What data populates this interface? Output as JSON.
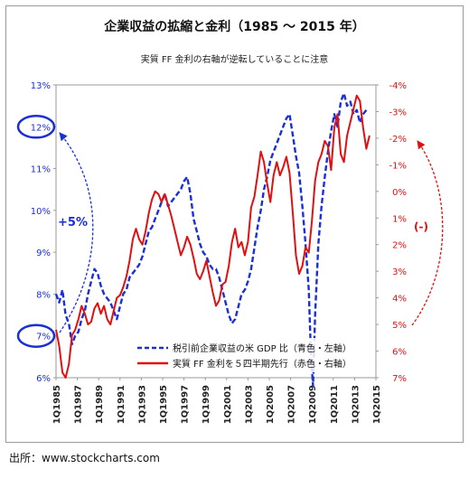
{
  "title": "企業収益の拡縮と金利（1985 ～ 2015 年）",
  "subtitle": "実質 FF 金利の右軸が逆転していることに注意",
  "source": "出所：www.stockcharts.com",
  "colors": {
    "left_series": "#1a2fd6",
    "right_series": "#e01010",
    "left_axis": "#1a2fd6",
    "right_axis": "#e01010"
  },
  "annotations": {
    "left_change": "+5%",
    "right_change": "(-)"
  },
  "chart_data": {
    "type": "line",
    "title": "企業収益の拡縮と金利（1985 ～ 2015 年）",
    "subtitle": "実質 FF 金利の右軸が逆転していることに注意",
    "x_tick_labels": [
      "1Q1985",
      "1Q1987",
      "1Q1989",
      "1Q1991",
      "1Q1993",
      "1Q1995",
      "1Q1997",
      "1Q1999",
      "1Q2001",
      "1Q2003",
      "1Q2005",
      "1Q2007",
      "1Q2009",
      "1Q2011",
      "1Q2013",
      "1Q2015"
    ],
    "x_range": [
      1985,
      2015
    ],
    "left_axis": {
      "min": 6,
      "max": 13,
      "tick_labels": [
        "6%",
        "7%",
        "8%",
        "9%",
        "10%",
        "11%",
        "12%",
        "13%"
      ],
      "circled": [
        "7%",
        "12%"
      ]
    },
    "right_axis": {
      "min": -4,
      "max": 7,
      "reversed": true,
      "tick_labels": [
        "-4%",
        "-3%",
        "-2%",
        "-1%",
        "0%",
        "1%",
        "2%",
        "3%",
        "4%",
        "5%",
        "6%",
        "7%"
      ]
    },
    "legend_placement": "bottom-right",
    "series": [
      {
        "name": "税引前企業収益の米 GDP 比（青色・左軸）",
        "axis": "left",
        "style": "dashed",
        "x": [
          1985.0,
          1985.3,
          1985.6,
          1985.9,
          1986.2,
          1986.5,
          1986.8,
          1987.1,
          1987.4,
          1987.7,
          1988.0,
          1988.3,
          1988.6,
          1988.9,
          1989.2,
          1989.5,
          1989.8,
          1990.1,
          1990.4,
          1990.7,
          1991.0,
          1991.3,
          1991.6,
          1991.9,
          1992.2,
          1992.5,
          1992.8,
          1993.1,
          1993.4,
          1993.7,
          1994.0,
          1994.3,
          1994.6,
          1994.9,
          1995.2,
          1995.5,
          1995.8,
          1996.1,
          1996.4,
          1996.7,
          1997.0,
          1997.3,
          1997.6,
          1997.9,
          1998.2,
          1998.5,
          1998.8,
          1999.1,
          1999.4,
          1999.7,
          2000.0,
          2000.3,
          2000.6,
          2000.9,
          2001.2,
          2001.5,
          2001.8,
          2002.1,
          2002.4,
          2002.7,
          2003.0,
          2003.3,
          2003.6,
          2003.9,
          2004.2,
          2004.5,
          2004.8,
          2005.1,
          2005.4,
          2005.7,
          2006.0,
          2006.3,
          2006.6,
          2006.9,
          2007.2,
          2007.5,
          2007.8,
          2008.1,
          2008.4,
          2008.7,
          2008.9,
          2009.1,
          2009.3,
          2009.6,
          2009.9,
          2010.2,
          2010.5,
          2010.8,
          2011.1,
          2011.4,
          2011.7,
          2012.0,
          2012.3,
          2012.6,
          2012.9,
          2013.2,
          2013.5,
          2013.8,
          2014.1
        ],
        "y": [
          8.0,
          7.8,
          8.1,
          7.5,
          7.3,
          6.8,
          7.0,
          7.1,
          7.4,
          7.6,
          8.0,
          8.3,
          8.6,
          8.5,
          8.2,
          8.0,
          7.9,
          7.8,
          7.6,
          7.4,
          7.7,
          8.0,
          8.1,
          8.4,
          8.5,
          8.6,
          8.7,
          8.9,
          9.2,
          9.5,
          9.6,
          9.8,
          10.0,
          10.2,
          10.4,
          10.1,
          10.2,
          10.3,
          10.4,
          10.5,
          10.7,
          10.8,
          10.4,
          9.8,
          9.5,
          9.2,
          9.0,
          8.9,
          8.7,
          8.6,
          8.6,
          8.4,
          8.1,
          7.8,
          7.5,
          7.3,
          7.4,
          7.7,
          8.0,
          8.1,
          8.3,
          8.6,
          9.1,
          9.6,
          10.0,
          10.5,
          10.8,
          11.2,
          11.4,
          11.6,
          11.8,
          12.0,
          12.2,
          12.3,
          11.8,
          11.3,
          10.9,
          10.1,
          9.2,
          8.1,
          6.6,
          5.8,
          7.5,
          9.2,
          10.1,
          10.8,
          11.4,
          11.9,
          12.3,
          12.0,
          12.6,
          12.8,
          12.5,
          12.6,
          12.3,
          12.4,
          12.1,
          12.3,
          12.4
        ]
      },
      {
        "name": "実質 FF 金利を５四半期先行（赤色・右軸）",
        "axis": "right",
        "style": "solid",
        "x": [
          1985.0,
          1985.3,
          1985.6,
          1985.9,
          1986.2,
          1986.5,
          1986.8,
          1987.1,
          1987.4,
          1987.7,
          1988.0,
          1988.3,
          1988.6,
          1988.9,
          1989.2,
          1989.5,
          1989.8,
          1990.1,
          1990.4,
          1990.7,
          1991.0,
          1991.3,
          1991.6,
          1991.9,
          1992.2,
          1992.5,
          1992.8,
          1993.1,
          1993.4,
          1993.7,
          1994.0,
          1994.3,
          1994.6,
          1994.9,
          1995.2,
          1995.5,
          1995.8,
          1996.1,
          1996.4,
          1996.7,
          1997.0,
          1997.3,
          1997.6,
          1997.9,
          1998.2,
          1998.5,
          1998.8,
          1999.1,
          1999.4,
          1999.7,
          2000.0,
          2000.3,
          2000.6,
          2000.9,
          2001.2,
          2001.5,
          2001.8,
          2002.1,
          2002.4,
          2002.7,
          2003.0,
          2003.3,
          2003.6,
          2003.9,
          2004.2,
          2004.5,
          2004.8,
          2005.1,
          2005.4,
          2005.7,
          2006.0,
          2006.3,
          2006.6,
          2006.9,
          2007.2,
          2007.5,
          2007.8,
          2008.1,
          2008.4,
          2008.7,
          2009.0,
          2009.3,
          2009.6,
          2009.9,
          2010.2,
          2010.5,
          2010.8,
          2011.1,
          2011.4,
          2011.7,
          2012.0,
          2012.3,
          2012.6,
          2012.9,
          2013.2,
          2013.5,
          2013.8,
          2014.1,
          2014.4
        ],
        "y": [
          5.2,
          5.8,
          6.8,
          7.0,
          6.5,
          5.4,
          5.2,
          4.8,
          4.3,
          4.6,
          5.0,
          4.9,
          4.4,
          4.2,
          4.6,
          4.3,
          4.8,
          5.0,
          4.5,
          4.0,
          3.9,
          3.6,
          3.2,
          2.6,
          1.8,
          1.4,
          1.8,
          2.0,
          1.5,
          0.8,
          0.3,
          0.0,
          0.1,
          0.4,
          0.1,
          0.5,
          0.9,
          1.4,
          1.9,
          2.4,
          2.1,
          1.7,
          2.0,
          2.5,
          3.1,
          3.3,
          3.0,
          2.6,
          3.2,
          3.8,
          4.3,
          4.1,
          3.5,
          3.4,
          2.8,
          1.9,
          1.4,
          2.1,
          1.9,
          2.4,
          1.9,
          0.6,
          0.2,
          -0.6,
          -1.5,
          -1.1,
          -0.3,
          0.4,
          -0.6,
          -1.1,
          -0.6,
          -0.9,
          -1.3,
          -0.7,
          0.8,
          2.4,
          3.1,
          2.8,
          2.1,
          2.3,
          1.1,
          -0.4,
          -1.1,
          -1.4,
          -1.9,
          -1.7,
          -0.8,
          -2.4,
          -2.9,
          -1.4,
          -1.1,
          -2.1,
          -2.6,
          -3.1,
          -3.6,
          -3.4,
          -2.4,
          -1.6,
          -2.1
        ]
      }
    ]
  }
}
